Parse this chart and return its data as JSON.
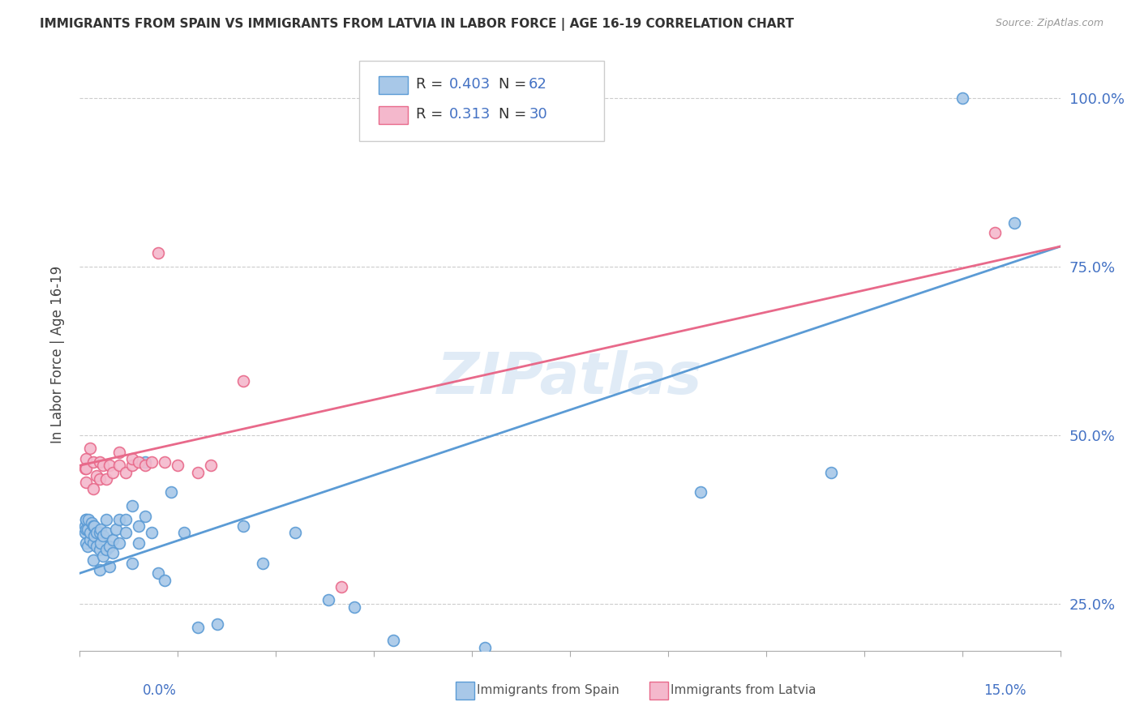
{
  "title": "IMMIGRANTS FROM SPAIN VS IMMIGRANTS FROM LATVIA IN LABOR FORCE | AGE 16-19 CORRELATION CHART",
  "source": "Source: ZipAtlas.com",
  "ylabel": "In Labor Force | Age 16-19",
  "ylabel_ticks": [
    "25.0%",
    "50.0%",
    "75.0%",
    "100.0%"
  ],
  "ylabel_tick_vals": [
    0.25,
    0.5,
    0.75,
    1.0
  ],
  "xmin": 0.0,
  "xmax": 0.15,
  "ymin": 0.18,
  "ymax": 1.06,
  "legend_r_spain": "0.403",
  "legend_n_spain": "62",
  "legend_r_latvia": "0.313",
  "legend_n_latvia": "30",
  "color_spain_fill": "#A8C8E8",
  "color_spain_edge": "#5B9BD5",
  "color_latvia_fill": "#F4B8CC",
  "color_latvia_edge": "#E8698A",
  "color_spain_line": "#5B9BD5",
  "color_latvia_line": "#E8698A",
  "color_blue_text": "#4472C4",
  "color_grid": "#CCCCCC",
  "watermark": "ZIPatlas",
  "spain_line_x0": 0.0,
  "spain_line_y0": 0.295,
  "spain_line_x1": 0.15,
  "spain_line_y1": 0.78,
  "latvia_line_x0": 0.0,
  "latvia_line_y0": 0.455,
  "latvia_line_x1": 0.15,
  "latvia_line_y1": 0.78,
  "spain_x": [
    0.0008,
    0.0008,
    0.0009,
    0.001,
    0.001,
    0.001,
    0.0012,
    0.0012,
    0.0013,
    0.0015,
    0.0016,
    0.0018,
    0.002,
    0.002,
    0.002,
    0.0022,
    0.0022,
    0.0025,
    0.0025,
    0.003,
    0.003,
    0.003,
    0.0032,
    0.0032,
    0.0035,
    0.0035,
    0.004,
    0.004,
    0.004,
    0.0045,
    0.0045,
    0.005,
    0.005,
    0.0055,
    0.006,
    0.006,
    0.007,
    0.007,
    0.008,
    0.008,
    0.009,
    0.009,
    0.01,
    0.01,
    0.011,
    0.012,
    0.013,
    0.014,
    0.016,
    0.018,
    0.021,
    0.025,
    0.028,
    0.033,
    0.038,
    0.042,
    0.048,
    0.062,
    0.095,
    0.115,
    0.135,
    0.143
  ],
  "spain_y": [
    0.355,
    0.365,
    0.375,
    0.34,
    0.36,
    0.375,
    0.335,
    0.36,
    0.375,
    0.345,
    0.355,
    0.37,
    0.315,
    0.34,
    0.365,
    0.35,
    0.365,
    0.335,
    0.355,
    0.3,
    0.33,
    0.355,
    0.34,
    0.36,
    0.32,
    0.35,
    0.33,
    0.355,
    0.375,
    0.305,
    0.335,
    0.325,
    0.345,
    0.36,
    0.34,
    0.375,
    0.355,
    0.375,
    0.31,
    0.395,
    0.34,
    0.365,
    0.38,
    0.46,
    0.355,
    0.295,
    0.285,
    0.415,
    0.355,
    0.215,
    0.22,
    0.365,
    0.31,
    0.355,
    0.255,
    0.245,
    0.195,
    0.185,
    0.415,
    0.445,
    1.0,
    0.815
  ],
  "latvia_x": [
    0.0008,
    0.0009,
    0.001,
    0.001,
    0.0015,
    0.002,
    0.002,
    0.0025,
    0.003,
    0.003,
    0.0035,
    0.004,
    0.0045,
    0.005,
    0.006,
    0.006,
    0.007,
    0.008,
    0.008,
    0.009,
    0.01,
    0.011,
    0.012,
    0.013,
    0.015,
    0.018,
    0.02,
    0.025,
    0.04,
    0.14
  ],
  "latvia_y": [
    0.45,
    0.465,
    0.43,
    0.45,
    0.48,
    0.42,
    0.46,
    0.44,
    0.435,
    0.46,
    0.455,
    0.435,
    0.455,
    0.445,
    0.475,
    0.455,
    0.445,
    0.455,
    0.465,
    0.46,
    0.455,
    0.46,
    0.77,
    0.46,
    0.455,
    0.445,
    0.455,
    0.58,
    0.275,
    0.8
  ]
}
